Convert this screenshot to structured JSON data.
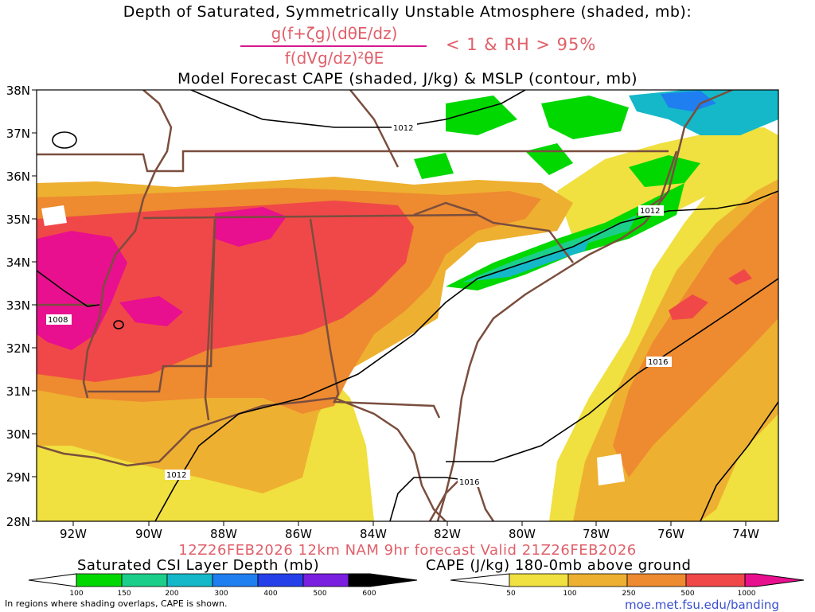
{
  "titles": {
    "line1": "Depth of Saturated, Symmetrically Unstable Atmosphere (shaded, mb):",
    "numerator": "g(f+ζg)(dθE/dz)",
    "denominator": "f(dVg/dz)²θE",
    "condition": "< 1 & RH > 95%",
    "line3": "Model Forecast CAPE (shaded, J/kg) & MSLP (contour, mb)"
  },
  "axes": {
    "lat_labels": [
      "38N",
      "37N",
      "36N",
      "35N",
      "34N",
      "33N",
      "32N",
      "31N",
      "30N",
      "29N",
      "28N"
    ],
    "lon_labels": [
      "92W",
      "90W",
      "88W",
      "86W",
      "84W",
      "82W",
      "80W",
      "78W",
      "76W",
      "74W"
    ]
  },
  "isobars": [
    "1012",
    "1012",
    "1008",
    "1016",
    "1016",
    "1012"
  ],
  "valid_line": "12Z26FEB2026 12km NAM 9hr forecast Valid 21Z26FEB2026",
  "legend_csi": {
    "title": "Saturated CSI Layer Depth (mb)",
    "ticks": [
      "100",
      "150",
      "200",
      "300",
      "400",
      "500",
      "600"
    ],
    "colors": [
      "#00d800",
      "#1bcf8a",
      "#14b8c8",
      "#1f7ef0",
      "#2540e8",
      "#7a1ee0",
      "#000000"
    ]
  },
  "legend_cape": {
    "title": "CAPE (J/kg) 180-0mb above ground",
    "ticks": [
      "50",
      "100",
      "250",
      "500",
      "1000"
    ],
    "colors": [
      "#f0e040",
      "#eeb030",
      "#ee8a30",
      "#f04848",
      "#e8108e"
    ]
  },
  "note": "In regions where shading overlaps, CAPE is shown.",
  "url": "moe.met.fsu.edu/banding"
}
